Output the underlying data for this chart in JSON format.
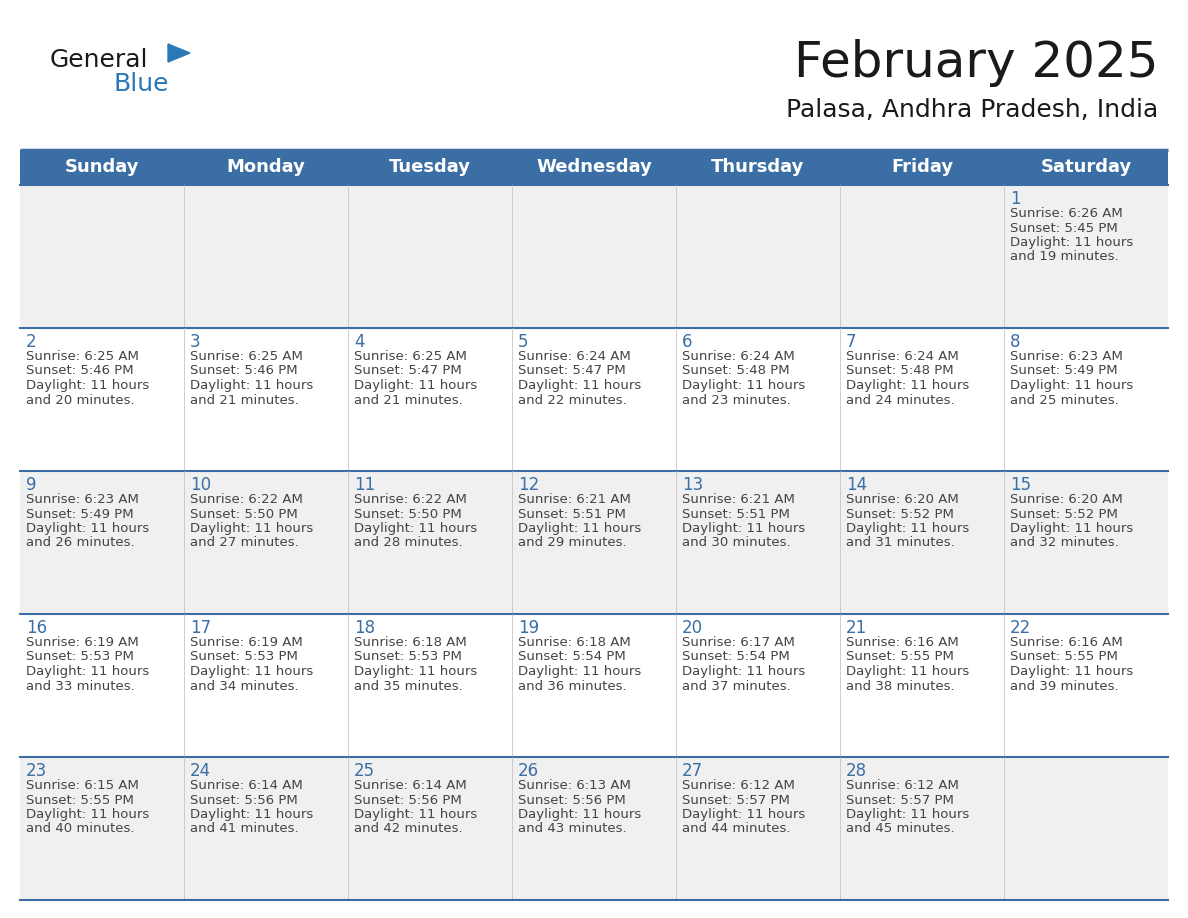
{
  "title": "February 2025",
  "subtitle": "Palasa, Andhra Pradesh, India",
  "header_bg_color": "#3A6EA5",
  "header_text_color": "#FFFFFF",
  "header_days": [
    "Sunday",
    "Monday",
    "Tuesday",
    "Wednesday",
    "Thursday",
    "Friday",
    "Saturday"
  ],
  "cell_bg_color": "#F0F0F0",
  "cell_bg_white": "#FFFFFF",
  "divider_color": "#3A6EA5",
  "day_number_color": "#3A6EA5",
  "text_color": "#444444",
  "logo_text_color": "#1A1A1A",
  "logo_blue_color": "#2979B8",
  "logo_triangle_color": "#2979B8",
  "background_color": "#FFFFFF",
  "title_fontsize": 36,
  "subtitle_fontsize": 18,
  "header_fontsize": 13,
  "day_num_fontsize": 12,
  "info_fontsize": 9.5,
  "weeks": [
    {
      "days": [
        {
          "date": null,
          "info": null
        },
        {
          "date": null,
          "info": null
        },
        {
          "date": null,
          "info": null
        },
        {
          "date": null,
          "info": null
        },
        {
          "date": null,
          "info": null
        },
        {
          "date": null,
          "info": null
        },
        {
          "date": 1,
          "info": "Sunrise: 6:26 AM\nSunset: 5:45 PM\nDaylight: 11 hours\nand 19 minutes."
        }
      ]
    },
    {
      "days": [
        {
          "date": 2,
          "info": "Sunrise: 6:25 AM\nSunset: 5:46 PM\nDaylight: 11 hours\nand 20 minutes."
        },
        {
          "date": 3,
          "info": "Sunrise: 6:25 AM\nSunset: 5:46 PM\nDaylight: 11 hours\nand 21 minutes."
        },
        {
          "date": 4,
          "info": "Sunrise: 6:25 AM\nSunset: 5:47 PM\nDaylight: 11 hours\nand 21 minutes."
        },
        {
          "date": 5,
          "info": "Sunrise: 6:24 AM\nSunset: 5:47 PM\nDaylight: 11 hours\nand 22 minutes."
        },
        {
          "date": 6,
          "info": "Sunrise: 6:24 AM\nSunset: 5:48 PM\nDaylight: 11 hours\nand 23 minutes."
        },
        {
          "date": 7,
          "info": "Sunrise: 6:24 AM\nSunset: 5:48 PM\nDaylight: 11 hours\nand 24 minutes."
        },
        {
          "date": 8,
          "info": "Sunrise: 6:23 AM\nSunset: 5:49 PM\nDaylight: 11 hours\nand 25 minutes."
        }
      ]
    },
    {
      "days": [
        {
          "date": 9,
          "info": "Sunrise: 6:23 AM\nSunset: 5:49 PM\nDaylight: 11 hours\nand 26 minutes."
        },
        {
          "date": 10,
          "info": "Sunrise: 6:22 AM\nSunset: 5:50 PM\nDaylight: 11 hours\nand 27 minutes."
        },
        {
          "date": 11,
          "info": "Sunrise: 6:22 AM\nSunset: 5:50 PM\nDaylight: 11 hours\nand 28 minutes."
        },
        {
          "date": 12,
          "info": "Sunrise: 6:21 AM\nSunset: 5:51 PM\nDaylight: 11 hours\nand 29 minutes."
        },
        {
          "date": 13,
          "info": "Sunrise: 6:21 AM\nSunset: 5:51 PM\nDaylight: 11 hours\nand 30 minutes."
        },
        {
          "date": 14,
          "info": "Sunrise: 6:20 AM\nSunset: 5:52 PM\nDaylight: 11 hours\nand 31 minutes."
        },
        {
          "date": 15,
          "info": "Sunrise: 6:20 AM\nSunset: 5:52 PM\nDaylight: 11 hours\nand 32 minutes."
        }
      ]
    },
    {
      "days": [
        {
          "date": 16,
          "info": "Sunrise: 6:19 AM\nSunset: 5:53 PM\nDaylight: 11 hours\nand 33 minutes."
        },
        {
          "date": 17,
          "info": "Sunrise: 6:19 AM\nSunset: 5:53 PM\nDaylight: 11 hours\nand 34 minutes."
        },
        {
          "date": 18,
          "info": "Sunrise: 6:18 AM\nSunset: 5:53 PM\nDaylight: 11 hours\nand 35 minutes."
        },
        {
          "date": 19,
          "info": "Sunrise: 6:18 AM\nSunset: 5:54 PM\nDaylight: 11 hours\nand 36 minutes."
        },
        {
          "date": 20,
          "info": "Sunrise: 6:17 AM\nSunset: 5:54 PM\nDaylight: 11 hours\nand 37 minutes."
        },
        {
          "date": 21,
          "info": "Sunrise: 6:16 AM\nSunset: 5:55 PM\nDaylight: 11 hours\nand 38 minutes."
        },
        {
          "date": 22,
          "info": "Sunrise: 6:16 AM\nSunset: 5:55 PM\nDaylight: 11 hours\nand 39 minutes."
        }
      ]
    },
    {
      "days": [
        {
          "date": 23,
          "info": "Sunrise: 6:15 AM\nSunset: 5:55 PM\nDaylight: 11 hours\nand 40 minutes."
        },
        {
          "date": 24,
          "info": "Sunrise: 6:14 AM\nSunset: 5:56 PM\nDaylight: 11 hours\nand 41 minutes."
        },
        {
          "date": 25,
          "info": "Sunrise: 6:14 AM\nSunset: 5:56 PM\nDaylight: 11 hours\nand 42 minutes."
        },
        {
          "date": 26,
          "info": "Sunrise: 6:13 AM\nSunset: 5:56 PM\nDaylight: 11 hours\nand 43 minutes."
        },
        {
          "date": 27,
          "info": "Sunrise: 6:12 AM\nSunset: 5:57 PM\nDaylight: 11 hours\nand 44 minutes."
        },
        {
          "date": 28,
          "info": "Sunrise: 6:12 AM\nSunset: 5:57 PM\nDaylight: 11 hours\nand 45 minutes."
        },
        {
          "date": null,
          "info": null
        }
      ]
    }
  ]
}
